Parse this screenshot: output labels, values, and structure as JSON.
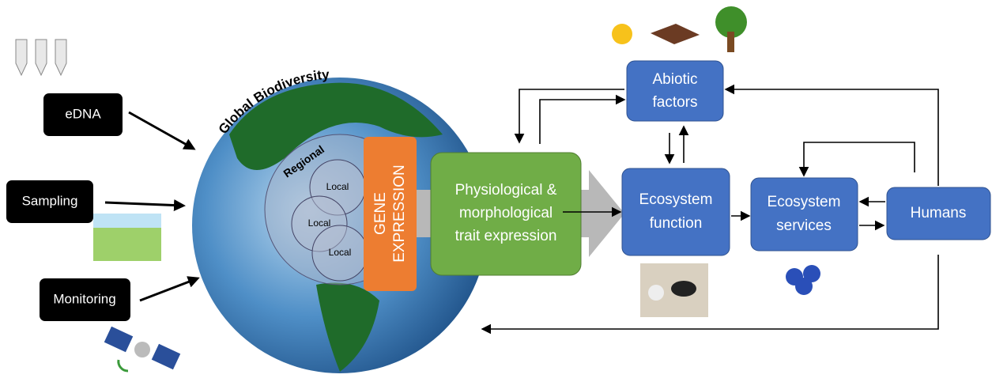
{
  "inputs": [
    {
      "label": "eDNA"
    },
    {
      "label": "Sampling"
    },
    {
      "label": "Monitoring"
    }
  ],
  "globe": {
    "title": "Global Biodiversity",
    "regional": "Regional",
    "local": [
      "Local",
      "Local",
      "Local"
    ]
  },
  "gene_expression": [
    "GENE",
    "EXPRESSION"
  ],
  "nodes": [
    {
      "lines": [
        "Physiological &",
        "morphological",
        "trait expression"
      ]
    },
    {
      "lines": [
        "Abiotic",
        "factors"
      ]
    },
    {
      "lines": [
        "Ecosystem",
        "function"
      ]
    },
    {
      "lines": [
        "Ecosystem",
        "services"
      ]
    },
    {
      "lines": [
        "Humans"
      ]
    }
  ]
}
